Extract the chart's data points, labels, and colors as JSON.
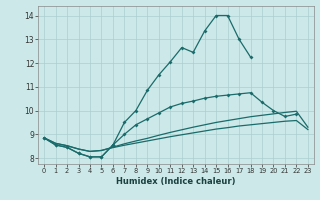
{
  "xlabel": "Humidex (Indice chaleur)",
  "bg_color": "#cce8e8",
  "grid_color": "#aacfcf",
  "line_color": "#1a6b6b",
  "xlim": [
    -0.5,
    23.5
  ],
  "ylim": [
    7.75,
    14.4
  ],
  "xticks": [
    0,
    1,
    2,
    3,
    4,
    5,
    6,
    7,
    8,
    9,
    10,
    11,
    12,
    13,
    14,
    15,
    16,
    17,
    18,
    19,
    20,
    21,
    22,
    23
  ],
  "yticks": [
    8,
    9,
    10,
    11,
    12,
    13,
    14
  ],
  "line1_x": [
    0,
    1,
    2,
    3,
    4,
    5,
    6,
    7,
    8,
    9,
    10,
    11,
    12,
    13,
    14,
    15,
    16,
    17,
    18
  ],
  "line1_y": [
    8.85,
    8.55,
    8.45,
    8.2,
    8.05,
    8.05,
    8.55,
    9.5,
    10.0,
    10.85,
    11.5,
    12.05,
    12.65,
    12.45,
    13.35,
    14.0,
    14.0,
    13.0,
    12.25
  ],
  "line2_x": [
    6,
    7,
    8,
    9,
    10,
    11,
    12,
    13,
    14,
    15,
    16,
    17,
    18,
    19,
    20,
    21,
    22
  ],
  "line2_y": [
    8.55,
    9.0,
    9.4,
    9.65,
    9.9,
    10.15,
    10.3,
    10.4,
    10.52,
    10.6,
    10.65,
    10.7,
    10.75,
    10.35,
    10.0,
    9.75,
    9.85
  ],
  "line2_start_x": [
    0,
    1,
    2,
    3,
    4,
    5,
    6
  ],
  "line2_start_y": [
    8.85,
    8.55,
    8.45,
    8.2,
    8.05,
    8.05,
    8.55
  ],
  "line3_x": [
    0,
    1,
    2,
    3,
    4,
    5,
    6,
    7,
    8,
    9,
    10,
    11,
    12,
    13,
    14,
    15,
    16,
    17,
    18,
    19,
    20,
    21,
    22,
    23
  ],
  "line3_y": [
    8.85,
    8.62,
    8.52,
    8.38,
    8.28,
    8.32,
    8.46,
    8.6,
    8.72,
    8.83,
    8.96,
    9.08,
    9.19,
    9.3,
    9.4,
    9.5,
    9.58,
    9.66,
    9.74,
    9.8,
    9.86,
    9.92,
    9.97,
    9.3
  ],
  "line4_x": [
    0,
    1,
    2,
    3,
    4,
    5,
    6,
    7,
    8,
    9,
    10,
    11,
    12,
    13,
    14,
    15,
    16,
    17,
    18,
    19,
    20,
    21,
    22,
    23
  ],
  "line4_y": [
    8.85,
    8.62,
    8.52,
    8.38,
    8.28,
    8.32,
    8.44,
    8.54,
    8.63,
    8.72,
    8.81,
    8.9,
    8.98,
    9.06,
    9.14,
    9.22,
    9.28,
    9.35,
    9.4,
    9.45,
    9.5,
    9.55,
    9.58,
    9.2
  ]
}
